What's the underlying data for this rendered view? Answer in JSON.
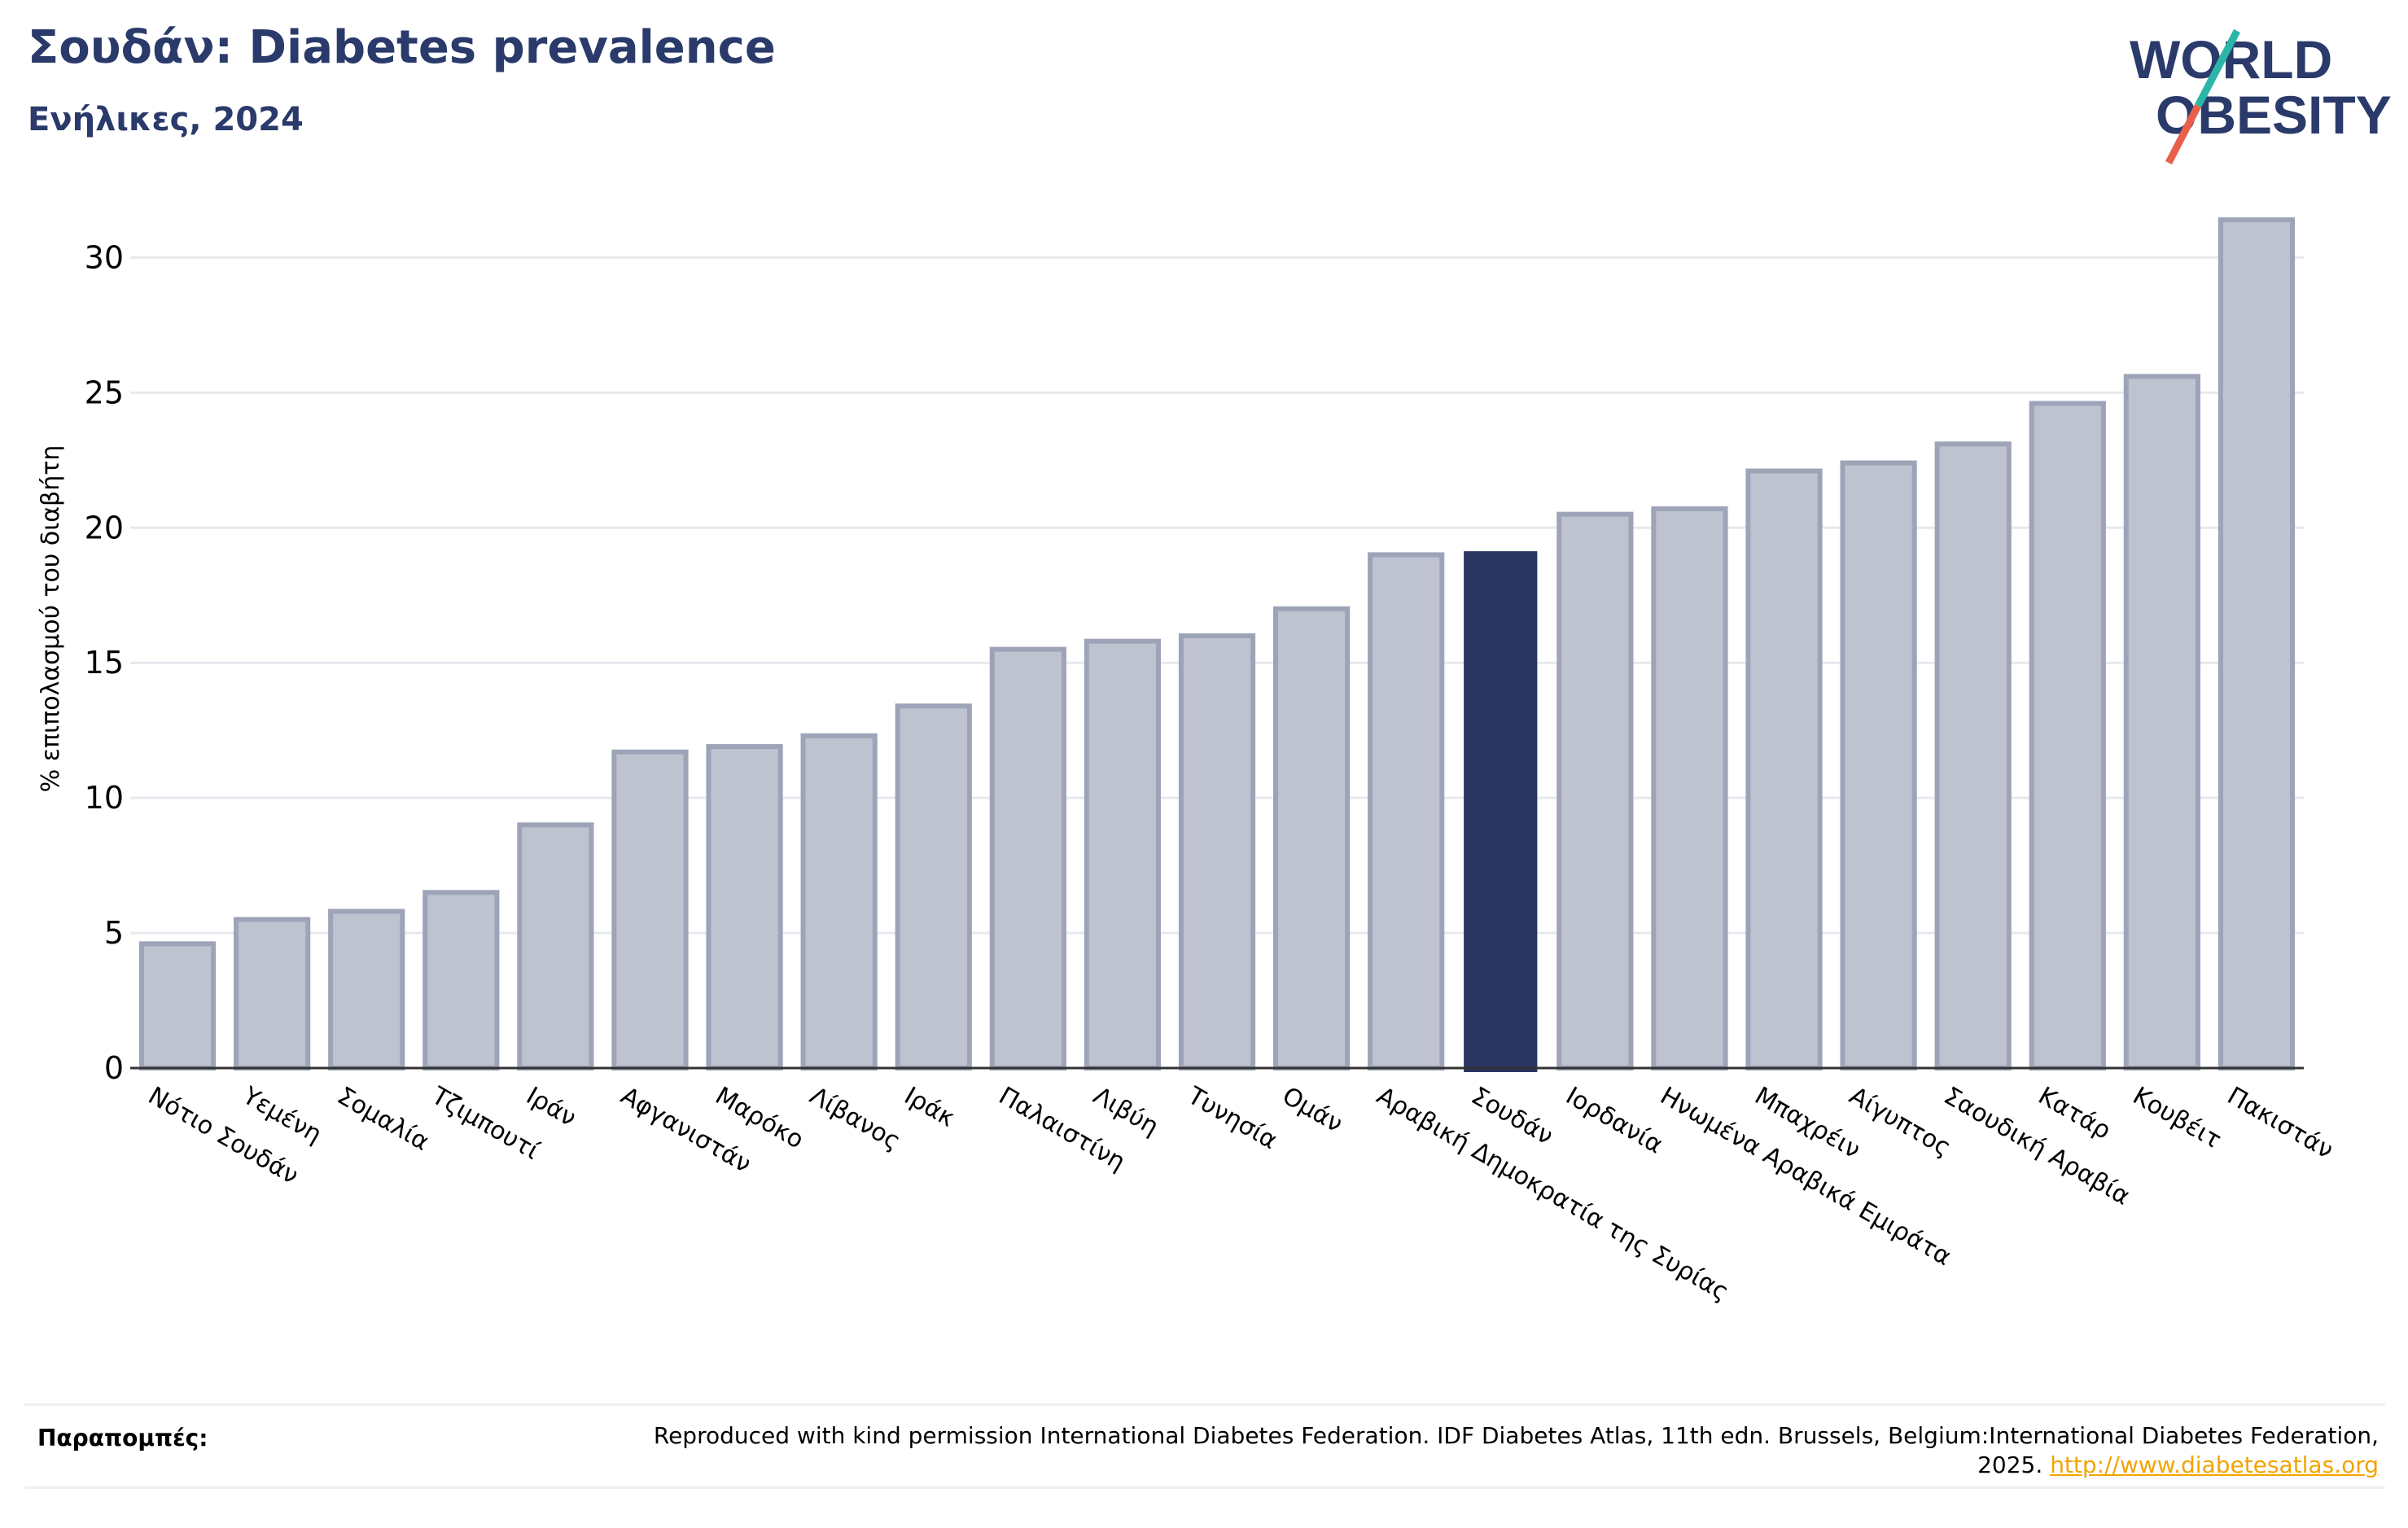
{
  "header": {
    "title": "Σουδάν: Diabetes prevalence",
    "subtitle": "Ενήλικες, 2024"
  },
  "logo": {
    "line1": "WORLD",
    "line2": "OBESITY",
    "slash_colors": [
      "#2bb5a8",
      "#e8604c"
    ],
    "text_color": "#2a3a6a"
  },
  "colors": {
    "highlight": "#2a3562",
    "bar_fill": "#bfc2cf",
    "bar_stroke": "#9ea4b8",
    "grid": "#e8e9ef",
    "text": "#2a3a6a"
  },
  "chart_data": {
    "type": "bar",
    "title": "Σουδάν: Diabetes prevalence",
    "subtitle": "Ενήλικες, 2024",
    "xlabel": "",
    "ylabel": "% επιπολασμού του διαβήτη",
    "ylim": [
      0,
      32
    ],
    "yticks": [
      0,
      5,
      10,
      15,
      20,
      25,
      30
    ],
    "grid": true,
    "highlight": "Σουδάν",
    "categories": [
      "Νότιο Σουδάν",
      "Υεμένη",
      "Σομαλία",
      "Τζιμπουτί",
      "Ιράν",
      "Αφγανιστάν",
      "Μαρόκο",
      "Λίβανος",
      "Ιράκ",
      "Παλαιστίνη",
      "Λιβύη",
      "Τυνησία",
      "Ομάν",
      "Αραβική Δημοκρατία της Συρίας",
      "Σουδάν",
      "Ιορδανία",
      "Ηνωμένα Αραβικά Εμιράτα",
      "Μπαχρέιν",
      "Αίγυπτος",
      "Σαουδική Αραβία",
      "Κατάρ",
      "Κουβέιτ",
      "Πακιστάν"
    ],
    "values": [
      4.6,
      5.5,
      5.8,
      6.5,
      9.0,
      11.7,
      11.9,
      12.3,
      13.4,
      15.5,
      15.8,
      16.0,
      17.0,
      19.0,
      19.1,
      20.5,
      20.7,
      22.1,
      22.4,
      23.1,
      24.6,
      25.6,
      31.4
    ]
  },
  "references": {
    "label": "Παραπομπές:",
    "text": "Reproduced with kind permission International Diabetes Federation. IDF Diabetes Atlas, 11th edn. Brussels, Belgium:International Diabetes Federation, 2025.",
    "link": "http://www.diabetesatlas.org"
  }
}
